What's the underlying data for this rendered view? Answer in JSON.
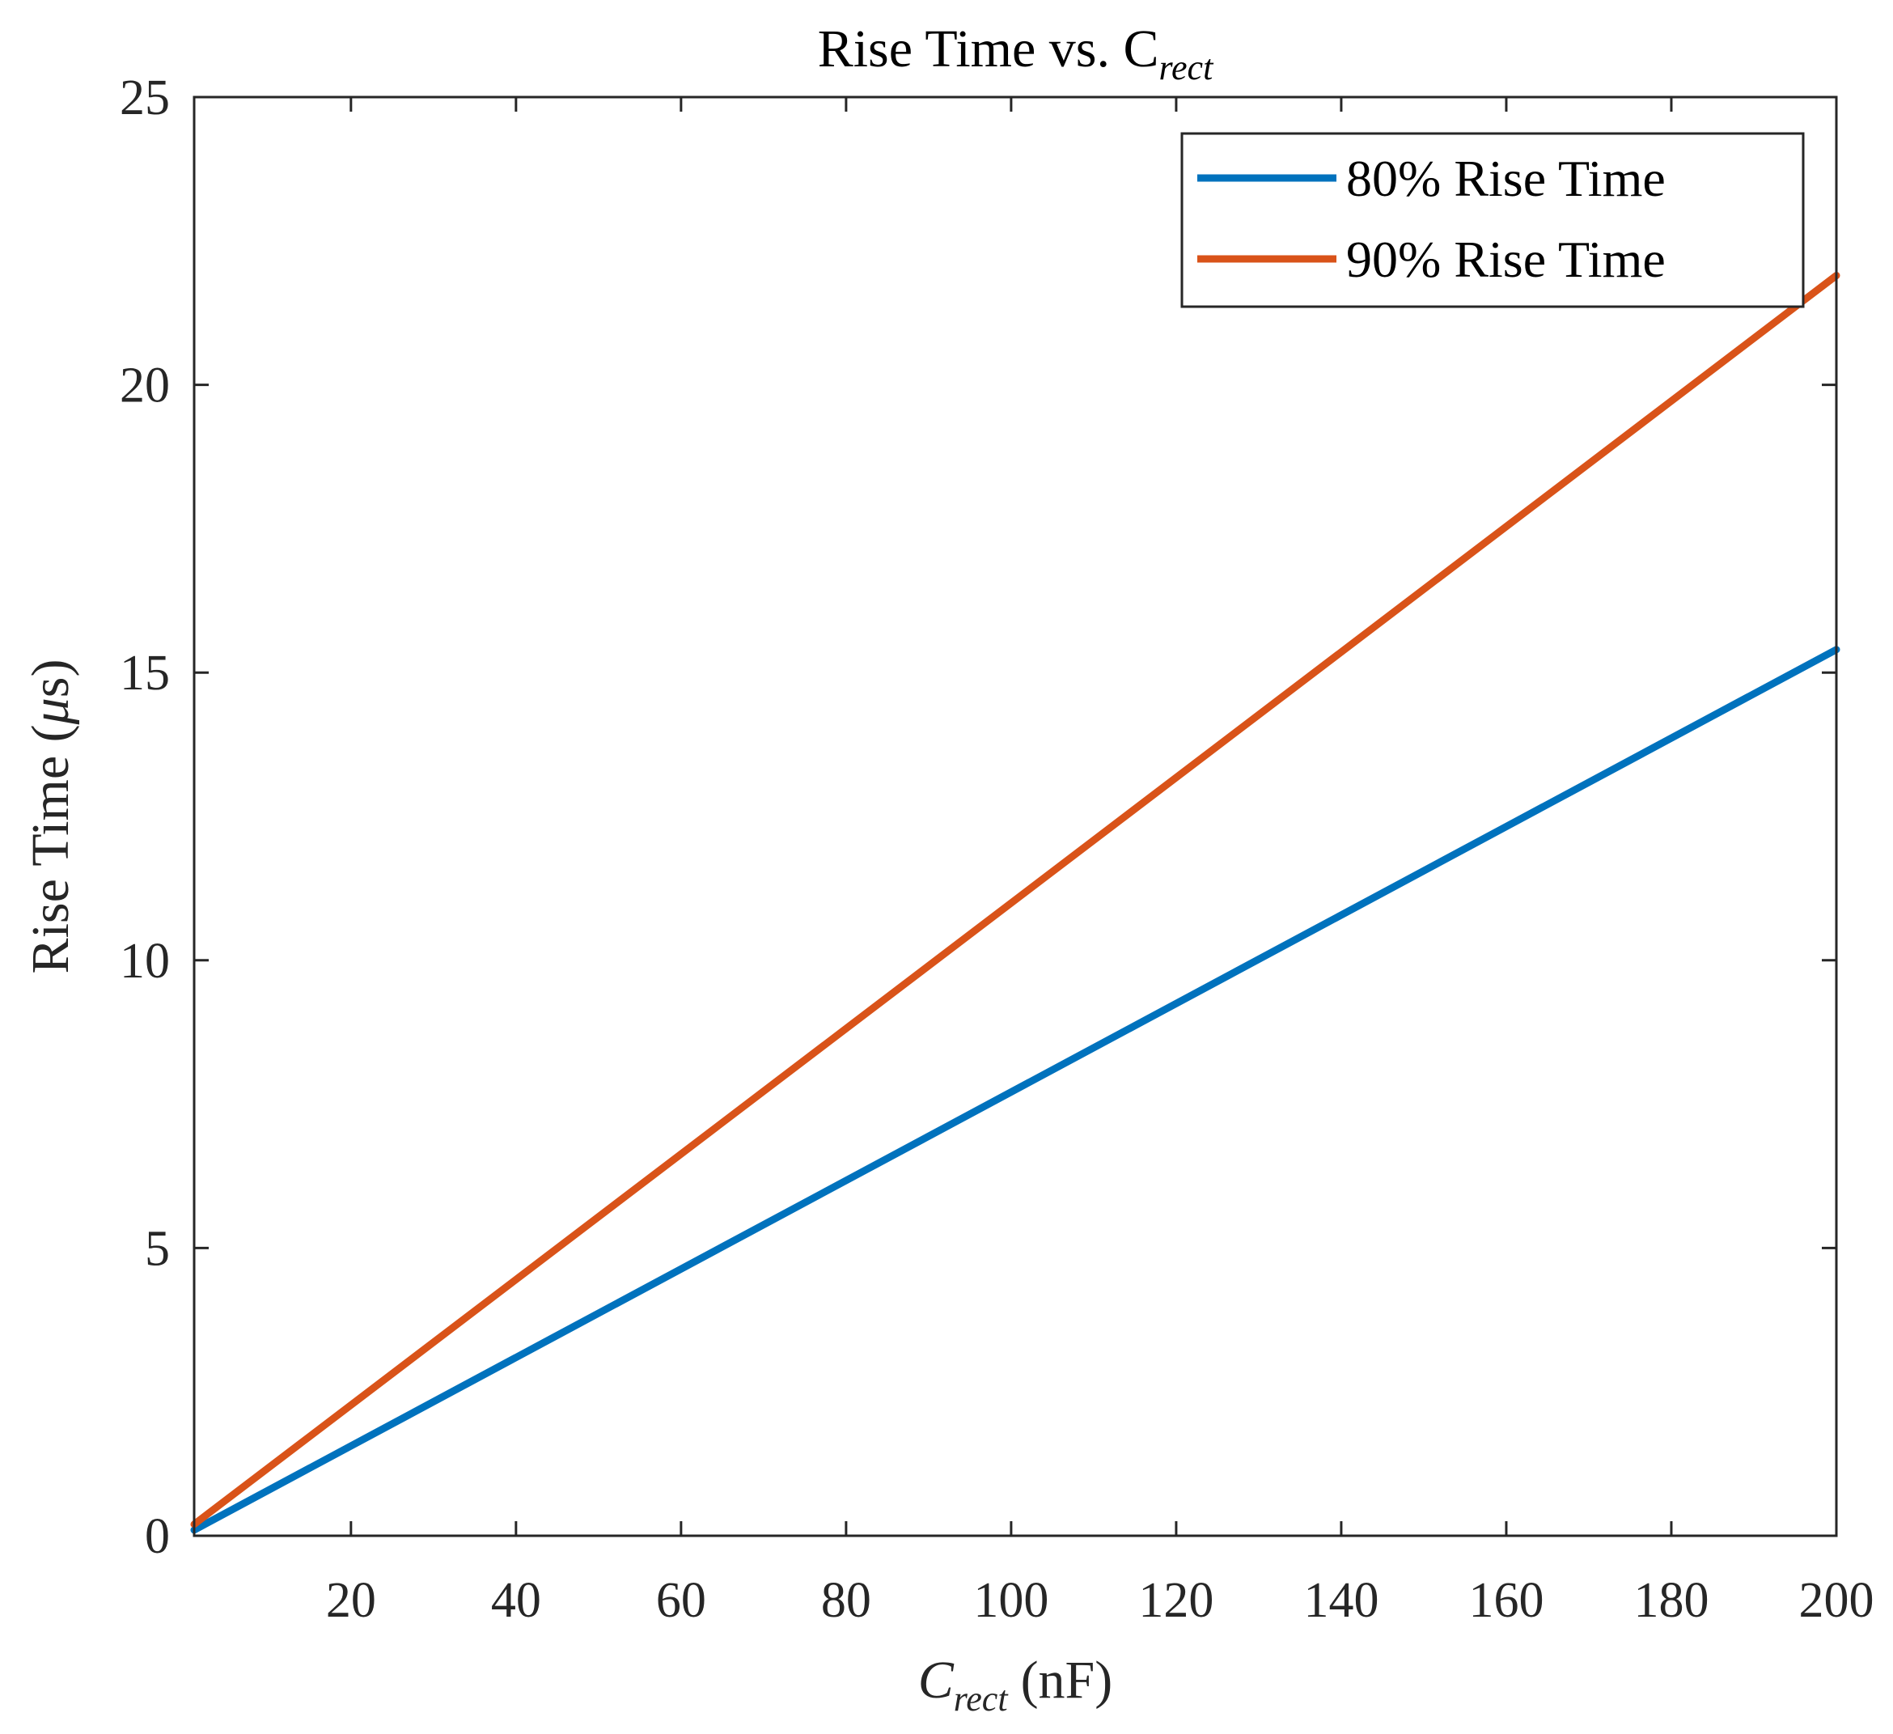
{
  "chart_data": {
    "type": "line",
    "title": "Rise Time vs. C",
    "title_subscript": "rect",
    "xlabel_symbol": "C",
    "xlabel_subscript": "rect",
    "xlabel_unit": "(nF)",
    "ylabel_prefix": "Rise Time (",
    "ylabel_symbol": "μ",
    "ylabel_suffix": "s)",
    "xlim": [
      1,
      200
    ],
    "ylim": [
      0,
      25
    ],
    "xticks": [
      20,
      40,
      60,
      80,
      100,
      120,
      140,
      160,
      180,
      200
    ],
    "xtick_labels": [
      "20",
      "40",
      "60",
      "80",
      "100",
      "120",
      "140",
      "160",
      "180",
      "200"
    ],
    "yticks": [
      0,
      5,
      10,
      15,
      20,
      25
    ],
    "ytick_labels": [
      "0",
      "5",
      "10",
      "15",
      "20",
      "25"
    ],
    "grid": false,
    "legend_position": "top-right",
    "series": [
      {
        "name": "80% Rise Time",
        "color": "#0072BD",
        "x": [
          1,
          200
        ],
        "y": [
          0.1,
          15.4
        ]
      },
      {
        "name": "90% Rise Time",
        "color": "#D95319",
        "x": [
          1,
          200
        ],
        "y": [
          0.2,
          21.9
        ]
      }
    ]
  }
}
